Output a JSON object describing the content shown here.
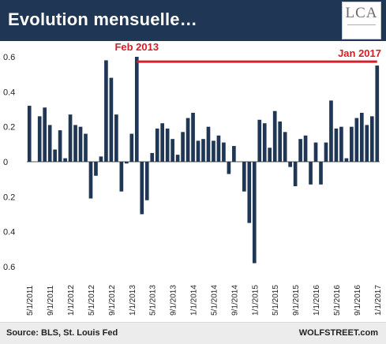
{
  "header": {
    "title": "Evolution mensuelle…",
    "logo_text": "LCA"
  },
  "footer": {
    "source": "Source: BLS, St. Louis Fed",
    "brand": "WOLFSTREET.com"
  },
  "colors": {
    "bar": "#1f3655",
    "annotation": "#d0202a",
    "header_bg": "#1f3655"
  },
  "chart_data": {
    "type": "bar",
    "ylim": [
      -0.6,
      0.6
    ],
    "y_ticks": [
      {
        "value": 0.6,
        "label": "0.6"
      },
      {
        "value": 0.4,
        "label": "0.4"
      },
      {
        "value": 0.2,
        "label": "0.2"
      },
      {
        "value": 0,
        "label": "0"
      },
      {
        "value": -0.2,
        "label": "0.2"
      },
      {
        "value": -0.4,
        "label": "0.4"
      },
      {
        "value": -0.6,
        "label": "0.6"
      }
    ],
    "x_tick_labels": [
      "5/1/2011",
      "9/1/2011",
      "1/1/2012",
      "5/1/2012",
      "9/1/2012",
      "1/1/2013",
      "5/1/2013",
      "9/1/2013",
      "1/1/2014",
      "5/1/2014",
      "9/1/2014",
      "1/1/2015",
      "5/1/2015",
      "9/1/2015",
      "1/1/2016",
      "5/1/2016",
      "9/1/2016",
      "1/1/2017"
    ],
    "start_month": "2011-05",
    "values": [
      0.32,
      0.0,
      0.26,
      0.31,
      0.21,
      0.07,
      0.18,
      0.02,
      0.27,
      0.21,
      0.2,
      0.16,
      -0.21,
      -0.08,
      0.03,
      0.58,
      0.48,
      0.27,
      -0.17,
      -0.01,
      0.16,
      0.6,
      -0.3,
      -0.22,
      0.05,
      0.19,
      0.22,
      0.19,
      0.13,
      0.04,
      0.17,
      0.25,
      0.28,
      0.12,
      0.13,
      0.2,
      0.12,
      0.15,
      0.11,
      -0.07,
      0.09,
      0.0,
      -0.17,
      -0.35,
      -0.58,
      0.24,
      0.22,
      0.08,
      0.29,
      0.23,
      0.17,
      -0.03,
      -0.14,
      0.13,
      0.15,
      -0.13,
      0.11,
      -0.13,
      0.11,
      0.35,
      0.19,
      0.2,
      0.02,
      0.2,
      0.25,
      0.28,
      0.21,
      0.26,
      0.55
    ],
    "annotations": [
      {
        "label": "Feb 2013",
        "month": "2013-02"
      },
      {
        "label": "Jan 2017",
        "month": "2017-01"
      }
    ]
  }
}
